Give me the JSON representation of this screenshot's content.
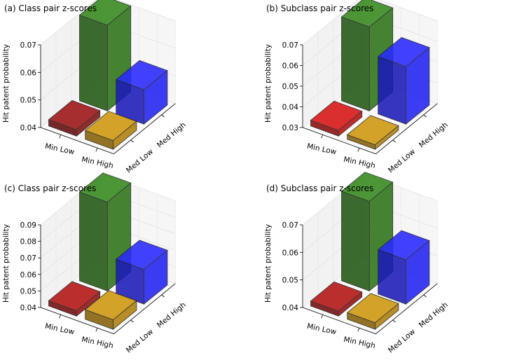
{
  "chart_data": [
    {
      "type": "bar3d",
      "title": "(a)  Class pair z-scores",
      "ylabel": "Hit patent probability",
      "x_categories": [
        "Min Low",
        "Min High"
      ],
      "depth_categories": [
        "Med Low",
        "Med High"
      ],
      "ylim": [
        0.04,
        0.07
      ],
      "yticks": [
        "0.04",
        "0.05",
        "0.06",
        "0.07"
      ],
      "bars": [
        {
          "x": "Min Low",
          "depth": "Med High",
          "value": 0.0711,
          "color": "#2f7a1a"
        },
        {
          "x": "Min High",
          "depth": "Med High",
          "value": 0.0525,
          "color": "#2424ff"
        },
        {
          "x": "Min Low",
          "depth": "Med Low",
          "value": 0.0423,
          "color": "#8b1010"
        },
        {
          "x": "Min High",
          "depth": "Med Low",
          "value": 0.0432,
          "color": "#b8860b"
        }
      ]
    },
    {
      "type": "bar3d",
      "title": "(b)  Subclass pair z-scores",
      "ylabel": "Hit patent probability",
      "x_categories": [
        "Min Low",
        "Min High"
      ],
      "depth_categories": [
        "Med Low",
        "Med High"
      ],
      "ylim": [
        0.03,
        0.07
      ],
      "yticks": [
        "0.03",
        "0.04",
        "0.05",
        "0.06",
        "0.07"
      ],
      "bars": [
        {
          "x": "Min Low",
          "depth": "Med High",
          "value": 0.0706,
          "color": "#2f7a1a"
        },
        {
          "x": "Min High",
          "depth": "Med High",
          "value": 0.0578,
          "color": "#2424ff"
        },
        {
          "x": "Min Low",
          "depth": "Med Low",
          "value": 0.0328,
          "color": "#c01010"
        },
        {
          "x": "Min High",
          "depth": "Med Low",
          "value": 0.0322,
          "color": "#b8860b"
        }
      ]
    },
    {
      "type": "bar3d",
      "title": "(c)  Class pair z-scores",
      "ylabel": "Hit patent probability",
      "x_categories": [
        "Min Low",
        "Min High"
      ],
      "depth_categories": [
        "Med Low",
        "Med High"
      ],
      "ylim": [
        0.04,
        0.09
      ],
      "yticks": [
        "0.04",
        "0.05",
        "0.06",
        "0.07",
        "0.08",
        "0.09"
      ],
      "bars": [
        {
          "x": "Min Low",
          "depth": "Med High",
          "value": 0.0937,
          "color": "#2f7a1a"
        },
        {
          "x": "Min High",
          "depth": "Med High",
          "value": 0.061,
          "color": "#2424ff"
        },
        {
          "x": "Min Low",
          "depth": "Med Low",
          "value": 0.0432,
          "color": "#a01010"
        },
        {
          "x": "Min High",
          "depth": "Med Low",
          "value": 0.0458,
          "color": "#b8860b"
        }
      ]
    },
    {
      "type": "bar3d",
      "title": "(d)  Subclass pair z-scores",
      "ylabel": "Hit patent probability",
      "x_categories": [
        "Min Low",
        "Min High"
      ],
      "depth_categories": [
        "Med Low",
        "Med High"
      ],
      "ylim": [
        0.04,
        0.07
      ],
      "yticks": [
        "0.04",
        "0.05",
        "0.06",
        "0.07"
      ],
      "bars": [
        {
          "x": "Min Low",
          "depth": "Med High",
          "value": 0.0725,
          "color": "#2f7a1a"
        },
        {
          "x": "Min High",
          "depth": "Med High",
          "value": 0.0561,
          "color": "#2424ff"
        },
        {
          "x": "Min Low",
          "depth": "Med Low",
          "value": 0.0418,
          "color": "#a01010"
        },
        {
          "x": "Min High",
          "depth": "Med Low",
          "value": 0.0424,
          "color": "#b8860b"
        }
      ]
    }
  ]
}
